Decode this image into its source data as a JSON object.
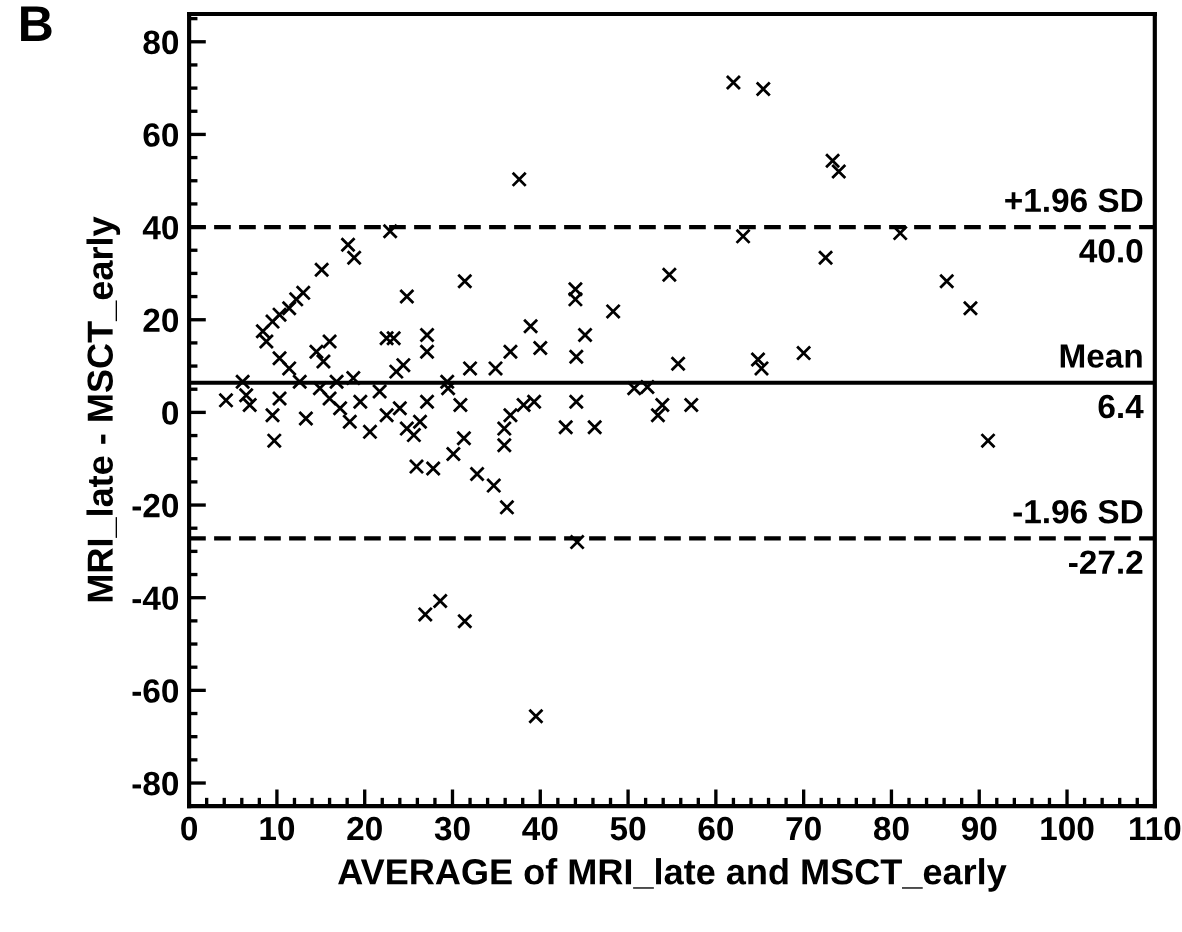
{
  "chart_data": {
    "type": "scatter",
    "xlabel": "AVERAGE of MRI_late and MSCT_early",
    "ylabel": "MRI_late - MSCT_early",
    "x": [
      62.0,
      65.4,
      73.3,
      74.0,
      63.1,
      81.0,
      72.5,
      54.7,
      86.3,
      89.0,
      55.7,
      64.8,
      65.2,
      70.0,
      53.9,
      57.2,
      91.0,
      37.6,
      22.9,
      18.1,
      18.8,
      15.1,
      24.8,
      31.4,
      44.0,
      44.0,
      48.3,
      38.9,
      45.1,
      40.0,
      44.1,
      36.6,
      32.0,
      34.9,
      27.1,
      27.1,
      22.5,
      23.3,
      24.4,
      8.4,
      9.5,
      10.3,
      11.4,
      12.2,
      13.0,
      8.8,
      10.3,
      11.4,
      4.2,
      6.1,
      6.5,
      6.9,
      9.5,
      10.3,
      12.6,
      13.3,
      14.5,
      15.3,
      16.0,
      14.9,
      16.0,
      16.8,
      17.2,
      18.3,
      18.7,
      19.5,
      20.6,
      21.7,
      22.5,
      23.6,
      24.0,
      24.8,
      25.6,
      26.3,
      27.1,
      29.4,
      29.5,
      30.9,
      9.7,
      25.9,
      27.8,
      30.1,
      31.3,
      32.8,
      34.7,
      35.9,
      35.9,
      36.6,
      38.1,
      39.3,
      44.1,
      42.9,
      46.2,
      50.7,
      52.2,
      53.4,
      36.2,
      44.2,
      26.9,
      28.6,
      31.4,
      39.5
    ],
    "values": [
      71.2,
      69.8,
      54.3,
      52.0,
      38.0,
      38.7,
      33.4,
      29.7,
      28.3,
      22.5,
      10.5,
      11.4,
      9.5,
      12.8,
      1.6,
      1.6,
      -6.1,
      50.3,
      39.1,
      36.2,
      33.4,
      30.8,
      25.0,
      28.3,
      26.6,
      24.4,
      21.8,
      18.6,
      16.7,
      13.9,
      12.0,
      13.1,
      9.5,
      9.5,
      16.7,
      13.1,
      16.0,
      16.0,
      10.2,
      17.5,
      19.6,
      21.1,
      22.5,
      24.4,
      25.8,
      15.3,
      11.7,
      9.5,
      2.6,
      6.6,
      3.7,
      1.6,
      -0.6,
      3.0,
      6.6,
      -1.3,
      13.1,
      11.0,
      15.3,
      5.2,
      3.0,
      6.6,
      0.9,
      -2.0,
      7.4,
      2.3,
      -4.2,
      4.5,
      -0.6,
      8.8,
      0.9,
      -3.5,
      -4.9,
      -2.0,
      2.3,
      6.6,
      5.2,
      1.6,
      -6.1,
      -11.7,
      -12.1,
      -9.0,
      -5.6,
      -13.3,
      -15.8,
      -7.1,
      -3.5,
      -0.6,
      1.6,
      2.3,
      2.3,
      -3.2,
      -3.2,
      5.2,
      5.5,
      -0.6,
      -20.5,
      -28.0,
      -43.6,
      -40.7,
      -45.1,
      -65.6
    ],
    "color": "#000000",
    "marker": "cross",
    "xlim": [
      0,
      110
    ],
    "xticks": [
      0,
      10,
      20,
      30,
      40,
      50,
      60,
      70,
      80,
      90,
      100,
      110
    ],
    "ylim": [
      -85,
      86
    ],
    "yticks": [
      -80,
      -60,
      -40,
      -20,
      0,
      20,
      40,
      60,
      80
    ],
    "grid": false,
    "ref_lines": [
      {
        "axis": "y",
        "value": 40.0,
        "label": "+1.96 SD",
        "line_style": "dashed",
        "color": "#000000"
      },
      {
        "axis": "y",
        "value": 6.4,
        "label": "Mean",
        "line_style": "solid",
        "color": "#000000"
      },
      {
        "axis": "y",
        "value": -27.2,
        "label": "-1.96 SD",
        "line_style": "dashed",
        "color": "#000000"
      }
    ],
    "annotations": [
      "B",
      {
        "text": "40.0",
        "y": 40.0
      },
      {
        "text": "6.4",
        "y": 6.4
      },
      {
        "text": "-27.2",
        "y": -27.2
      }
    ]
  }
}
